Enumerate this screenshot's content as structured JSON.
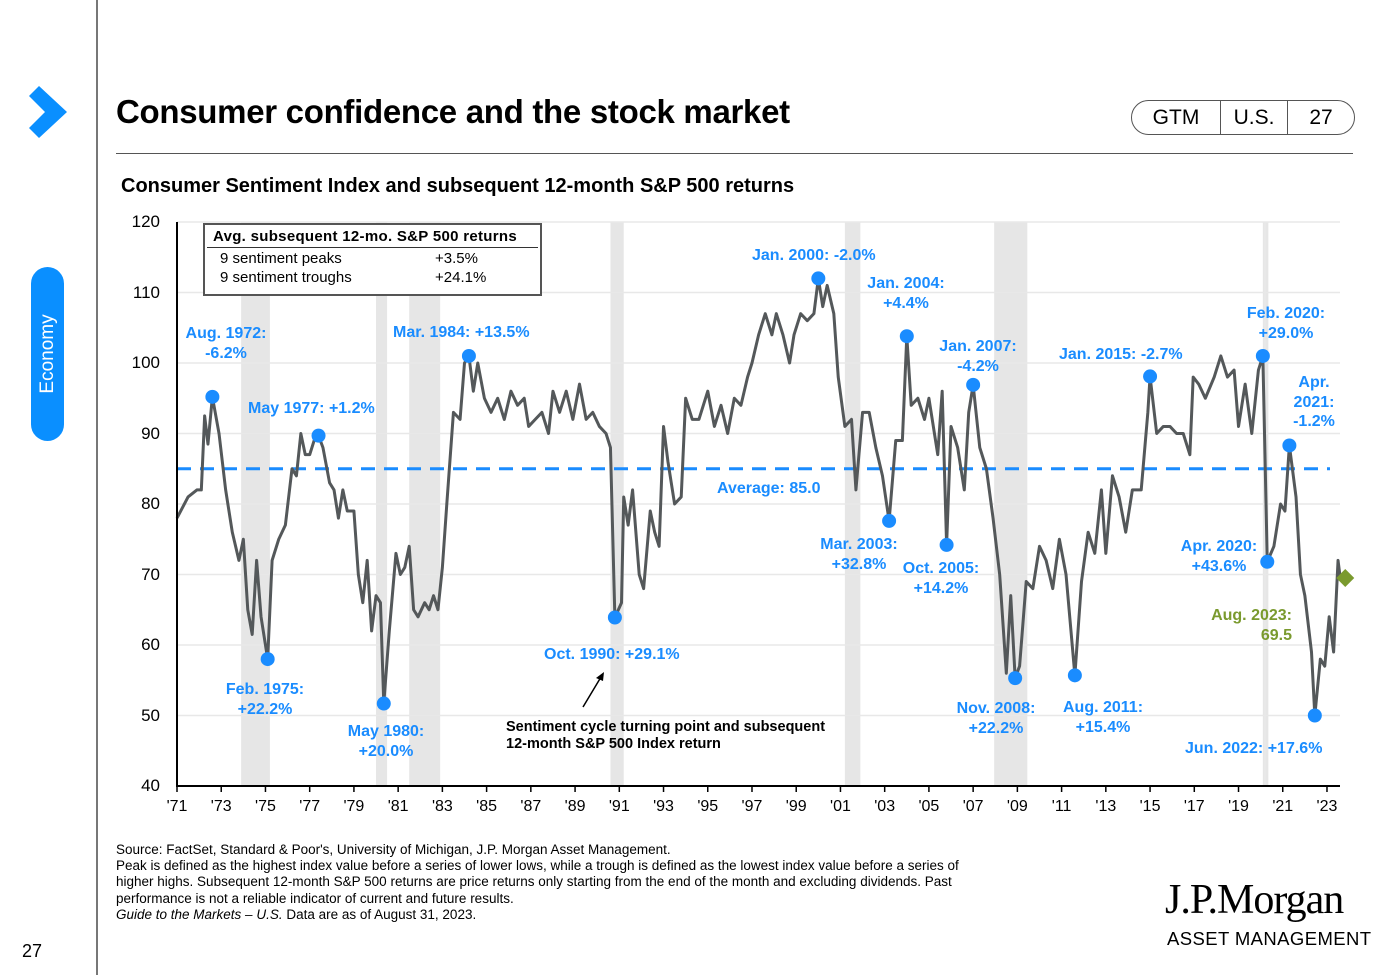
{
  "header": {
    "title": "Consumer confidence and the stock market",
    "badge": [
      "GTM",
      "U.S.",
      "27"
    ],
    "section": "Economy"
  },
  "page_number": "27",
  "chart_data": {
    "type": "line",
    "title": "Consumer Sentiment Index and subsequent 12-month S&P 500 returns",
    "ylim": [
      40,
      120
    ],
    "yticks": [
      40,
      50,
      60,
      70,
      80,
      90,
      100,
      110,
      120
    ],
    "xlim": [
      1971,
      1923.9
    ],
    "xticks": [
      "'71",
      "'73",
      "'75",
      "'77",
      "'79",
      "'81",
      "'83",
      "'85",
      "'87",
      "'89",
      "'91",
      "'93",
      "'95",
      "'97",
      "'99",
      "'01",
      "'03",
      "'05",
      "'07",
      "'09",
      "'11",
      "'13",
      "'15",
      "'17",
      "'19",
      "'21",
      "'23"
    ],
    "average": {
      "value": 85.0,
      "label": "Average: 85.0"
    },
    "recessions": [
      [
        1973.9,
        1975.2
      ],
      [
        1980.0,
        1980.5
      ],
      [
        1981.5,
        1982.9
      ],
      [
        1990.6,
        1991.2
      ],
      [
        2001.2,
        2001.9
      ],
      [
        2007.95,
        2009.45
      ],
      [
        2020.1,
        2020.35
      ]
    ],
    "series": [
      {
        "name": "Consumer Sentiment Index",
        "x": [
          1971.0,
          1971.5,
          1971.9,
          1972.1,
          1972.25,
          1972.4,
          1972.6,
          1972.9,
          1973.2,
          1973.5,
          1973.8,
          1974.0,
          1974.2,
          1974.4,
          1974.6,
          1974.8,
          1975.1,
          1975.3,
          1975.6,
          1975.9,
          1976.2,
          1976.4,
          1976.6,
          1976.8,
          1977.0,
          1977.2,
          1977.4,
          1977.6,
          1977.9,
          1978.1,
          1978.3,
          1978.5,
          1978.7,
          1979.0,
          1979.2,
          1979.4,
          1979.6,
          1979.8,
          1980.0,
          1980.2,
          1980.35,
          1980.6,
          1980.9,
          1981.1,
          1981.3,
          1981.5,
          1981.7,
          1981.9,
          1982.2,
          1982.4,
          1982.6,
          1982.8,
          1983.0,
          1983.2,
          1983.5,
          1983.8,
          1984.0,
          1984.2,
          1984.4,
          1984.6,
          1984.9,
          1985.2,
          1985.5,
          1985.8,
          1986.1,
          1986.4,
          1986.7,
          1986.9,
          1987.2,
          1987.5,
          1987.8,
          1988.0,
          1988.3,
          1988.6,
          1988.9,
          1989.2,
          1989.5,
          1989.8,
          1990.1,
          1990.4,
          1990.6,
          1990.8,
          1991.1,
          1991.2,
          1991.4,
          1991.6,
          1991.9,
          1992.1,
          1992.4,
          1992.6,
          1992.8,
          1993.0,
          1993.2,
          1993.5,
          1993.8,
          1994.0,
          1994.3,
          1994.6,
          1995.0,
          1995.3,
          1995.6,
          1995.9,
          1996.2,
          1996.5,
          1996.8,
          1997.0,
          1997.3,
          1997.6,
          1997.9,
          1998.1,
          1998.4,
          1998.7,
          1998.9,
          1999.2,
          1999.5,
          1999.8,
          2000.0,
          2000.2,
          2000.4,
          2000.7,
          2000.9,
          2001.2,
          2001.5,
          2001.7,
          2002.0,
          2002.3,
          2002.6,
          2002.9,
          2003.2,
          2003.5,
          2003.8,
          2004.0,
          2004.2,
          2004.5,
          2004.8,
          2005.0,
          2005.4,
          2005.6,
          2005.8,
          2006.0,
          2006.3,
          2006.6,
          2006.8,
          2007.0,
          2007.3,
          2007.6,
          2007.9,
          2008.2,
          2008.5,
          2008.7,
          2008.9,
          2009.1,
          2009.4,
          2009.7,
          2010.0,
          2010.3,
          2010.6,
          2010.9,
          2011.2,
          2011.6,
          2011.9,
          2012.2,
          2012.5,
          2012.8,
          2013.0,
          2013.3,
          2013.6,
          2013.9,
          2014.2,
          2014.6,
          2014.9,
          2015.0,
          2015.3,
          2015.6,
          2015.9,
          2016.2,
          2016.5,
          2016.8,
          2016.95,
          2017.2,
          2017.5,
          2017.9,
          2018.2,
          2018.5,
          2018.8,
          2019.0,
          2019.3,
          2019.6,
          2019.9,
          2020.1,
          2020.3,
          2020.6,
          2020.9,
          2021.1,
          2021.3,
          2021.6,
          2021.8,
          2022.0,
          2022.3,
          2022.45,
          2022.7,
          2022.9,
          2023.1,
          2023.3,
          2023.5,
          2023.6
        ],
        "y": [
          78,
          81,
          82,
          82,
          92.5,
          88.5,
          95.2,
          90,
          82,
          76,
          72,
          75,
          65,
          61.5,
          72,
          64,
          58,
          72,
          75,
          77,
          85,
          84,
          90,
          87,
          87,
          89,
          89.7,
          88,
          83,
          82,
          78,
          82,
          79,
          79,
          70,
          66,
          72,
          62,
          67,
          66,
          51.7,
          62,
          73,
          70,
          71,
          74,
          65,
          64,
          66,
          65,
          67,
          65,
          71,
          80,
          93,
          92,
          100,
          101,
          96,
          100,
          95,
          93,
          95,
          92,
          96,
          94,
          95,
          91,
          92,
          93,
          90,
          96,
          93,
          96,
          92,
          97,
          92,
          93,
          91,
          90,
          88,
          63.9,
          66,
          81,
          77,
          82,
          70,
          68,
          79,
          76,
          74,
          91,
          86,
          80,
          81,
          95,
          92,
          92,
          96,
          91,
          94,
          90,
          95,
          94,
          98,
          100,
          104,
          107,
          104,
          107,
          104,
          100,
          104,
          107,
          106,
          107,
          112,
          108,
          111,
          107,
          98,
          91,
          92,
          82,
          93,
          93,
          88,
          84,
          77.6,
          89,
          89,
          103.8,
          94,
          95,
          92,
          95,
          87,
          96,
          74.2,
          91,
          88,
          82,
          93,
          96.9,
          88,
          85,
          78,
          70,
          56,
          67,
          55.3,
          57,
          69,
          68,
          74,
          72,
          68,
          75,
          70,
          55.7,
          69,
          76,
          73,
          82,
          73,
          84,
          81,
          76,
          82,
          82,
          93,
          98.1,
          90,
          91,
          91,
          90,
          90,
          87,
          98,
          97,
          95,
          98,
          101,
          98,
          99,
          91,
          97,
          90,
          99,
          101,
          71.8,
          74,
          80,
          79,
          88.3,
          81,
          70,
          67,
          59,
          50,
          58,
          57,
          64,
          59,
          72,
          69.5
        ]
      }
    ],
    "annotations": [
      {
        "lines": [
          "Aug. 1972:",
          "-6.2%"
        ],
        "x": 1972.6,
        "y": 95.2,
        "kind": "peak"
      },
      {
        "lines": [
          "May 1977: +1.2%"
        ],
        "x": 1977.4,
        "y": 89.7,
        "kind": "peak"
      },
      {
        "lines": [
          "Feb. 1975:",
          "+22.2%"
        ],
        "x": 1975.1,
        "y": 58,
        "kind": "trough"
      },
      {
        "lines": [
          "May 1980:",
          "+20.0%"
        ],
        "x": 1980.35,
        "y": 51.7,
        "kind": "trough"
      },
      {
        "lines": [
          "Mar. 1984: +13.5%"
        ],
        "x": 1984.2,
        "y": 101,
        "kind": "peak"
      },
      {
        "lines": [
          "Oct. 1990: +29.1%"
        ],
        "x": 1990.8,
        "y": 63.9,
        "kind": "trough"
      },
      {
        "lines": [
          "Jan. 2000: -2.0%"
        ],
        "x": 2000.0,
        "y": 112,
        "kind": "peak"
      },
      {
        "lines": [
          "Jan. 2004:",
          "+4.4%"
        ],
        "x": 2004.0,
        "y": 103.8,
        "kind": "peak"
      },
      {
        "lines": [
          "Jan. 2007:",
          "-4.2%"
        ],
        "x": 2007.0,
        "y": 96.9,
        "kind": "peak"
      },
      {
        "lines": [
          "Mar. 2003:",
          "+32.8%"
        ],
        "x": 2003.2,
        "y": 77.6,
        "kind": "trough"
      },
      {
        "lines": [
          "Oct. 2005:",
          "+14.2%"
        ],
        "x": 2005.8,
        "y": 74.2,
        "kind": "trough"
      },
      {
        "lines": [
          "Nov. 2008:",
          "+22.2%"
        ],
        "x": 2008.9,
        "y": 55.3,
        "kind": "trough"
      },
      {
        "lines": [
          "Aug. 2011:",
          "+15.4%"
        ],
        "x": 2011.6,
        "y": 55.7,
        "kind": "trough"
      },
      {
        "lines": [
          "Jan. 2015: -2.7%"
        ],
        "x": 2015.0,
        "y": 98.1,
        "kind": "peak"
      },
      {
        "lines": [
          "Feb. 2020:",
          "+29.0%"
        ],
        "x": 2020.1,
        "y": 101,
        "kind": "peak"
      },
      {
        "lines": [
          "Apr.",
          "2021:",
          "-1.2%"
        ],
        "x": 2021.3,
        "y": 88.3,
        "kind": "peak"
      },
      {
        "lines": [
          "Apr. 2020:",
          "+43.6%"
        ],
        "x": 2020.3,
        "y": 71.8,
        "kind": "trough"
      },
      {
        "lines": [
          "Jun. 2022: +17.6%"
        ],
        "x": 2022.45,
        "y": 50,
        "kind": "trough"
      },
      {
        "lines": [
          "Aug. 2023:",
          "69.5"
        ],
        "x": 2023.6,
        "y": 69.5,
        "kind": "latest"
      }
    ],
    "legend_table": {
      "header": "Avg. subsequent 12-mo. S&P 500 returns",
      "rows": [
        [
          "9 sentiment peaks",
          "+3.5%"
        ],
        [
          "9 sentiment troughs",
          "+24.1%"
        ]
      ]
    },
    "note": [
      "Sentiment cycle turning point and subsequent",
      "12-month S&P 500 Index return"
    ],
    "colors": {
      "accent": "#1a8cff",
      "line": "#54585a",
      "latest": "#7a9a2e",
      "recession": "#e6e6e6"
    }
  },
  "footer": {
    "lines": [
      "Source: FactSet, Standard & Poor's, University of Michigan, J.P. Morgan Asset Management.",
      "Peak is defined as the highest index value before a series of lower lows, while a trough is defined as the lowest index value before a series of",
      "higher highs. Subsequent 12-month S&P 500 returns are price returns only starting from the end of the month and excluding dividends. Past",
      "performance is not a reliable indicator of current and future results."
    ],
    "guide_italic": "Guide to the Markets – U.S.",
    "guide_rest": " Data are as of August 31, 2023."
  },
  "logo": {
    "name": "J.P.Morgan",
    "sub": "ASSET MANAGEMENT"
  }
}
